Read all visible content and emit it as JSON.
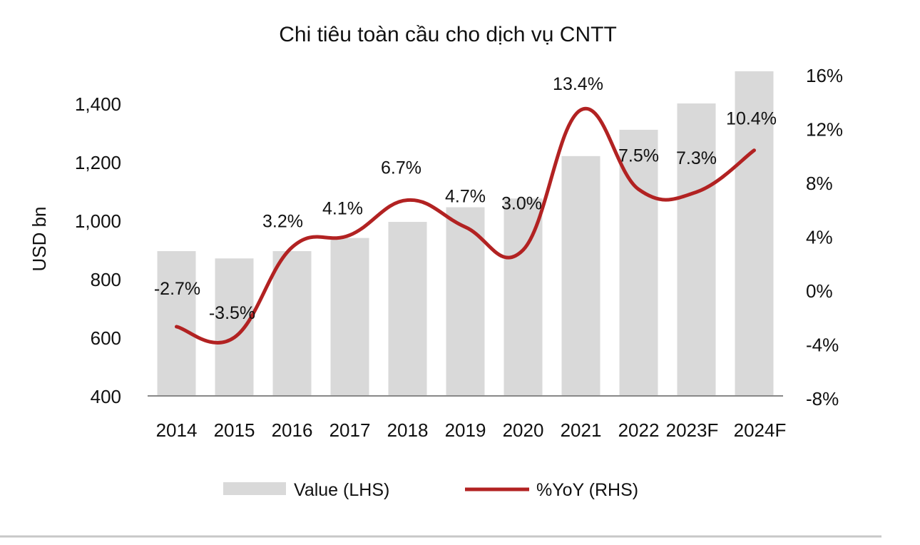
{
  "chart_data": {
    "type": "bar+line",
    "title": "Chi tiêu toàn cầu cho dịch vụ CNTT",
    "categories": [
      "2014",
      "2015",
      "2016",
      "2017",
      "2018",
      "2019",
      "2020",
      "2021",
      "2022",
      "2023F",
      "2024F"
    ],
    "series": [
      {
        "name": "Value (LHS)",
        "type": "bar",
        "axis": "left",
        "values": [
          895,
          870,
          895,
          940,
          995,
          1045,
          1075,
          1220,
          1310,
          1400,
          1510
        ]
      },
      {
        "name": "%YoY (RHS)",
        "type": "line",
        "axis": "right",
        "values": [
          -2.7,
          -3.5,
          3.2,
          4.1,
          6.7,
          4.7,
          3.0,
          13.4,
          7.5,
          7.3,
          10.4
        ],
        "labels": [
          "-2.7%",
          "-3.5%",
          "3.2%",
          "4.1%",
          "6.7%",
          "4.7%",
          "3.0%",
          "13.4%",
          "7.5%",
          "7.3%",
          "10.4%"
        ]
      }
    ],
    "ylabel": "USD bn",
    "xlabel": "",
    "ylim": [
      400,
      1500
    ],
    "y2lim": [
      -8,
      16
    ],
    "y_ticks": [
      400,
      600,
      800,
      1000,
      1200,
      1400
    ],
    "y_tick_labels": [
      "400",
      "600",
      "800",
      "1,000",
      "1,200",
      "1,400"
    ],
    "y2_ticks": [
      -8,
      -4,
      0,
      4,
      8,
      12,
      16
    ],
    "y2_tick_labels": [
      "-8%",
      "-4%",
      "0%",
      "4%",
      "8%",
      "12%",
      "16%"
    ],
    "legend": [
      "Value (LHS)",
      "%YoY (RHS)"
    ],
    "legend_position": "bottom",
    "grid": false,
    "colors": {
      "bar": "#d9d9d9",
      "line": "#b22222",
      "axis": "#888888",
      "separator": "#c8c8c8"
    }
  }
}
